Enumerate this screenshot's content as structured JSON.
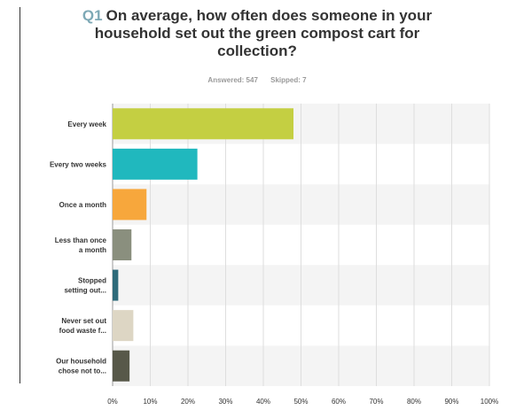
{
  "question": {
    "number": "Q1",
    "text": "On average, how often does someone in your household set out the green compost cart for collection?"
  },
  "stats": {
    "answered": "Answered: 547",
    "skipped": "Skipped: 7"
  },
  "chart_data": {
    "type": "bar",
    "orientation": "horizontal",
    "categories": [
      [
        "Every week"
      ],
      [
        "Every two weeks"
      ],
      [
        "Once a month"
      ],
      [
        "Less than once",
        "a month"
      ],
      [
        "Stopped",
        "setting out..."
      ],
      [
        "Never set out",
        "food waste f..."
      ],
      [
        "Our household",
        "chose not to..."
      ]
    ],
    "values": [
      48,
      22.5,
      9,
      5,
      1.5,
      5.5,
      4.5
    ],
    "unit": "%",
    "colors": [
      "#c4cf42",
      "#20b8be",
      "#f7a73c",
      "#8a8f7e",
      "#2f6b7a",
      "#ddd6c4",
      "#575849"
    ],
    "xlim": [
      0,
      100
    ],
    "x_ticks": [
      "0%",
      "10%",
      "20%",
      "30%",
      "40%",
      "50%",
      "60%",
      "70%",
      "80%",
      "90%",
      "100%"
    ],
    "grid": "vertical",
    "band_shading": true
  }
}
